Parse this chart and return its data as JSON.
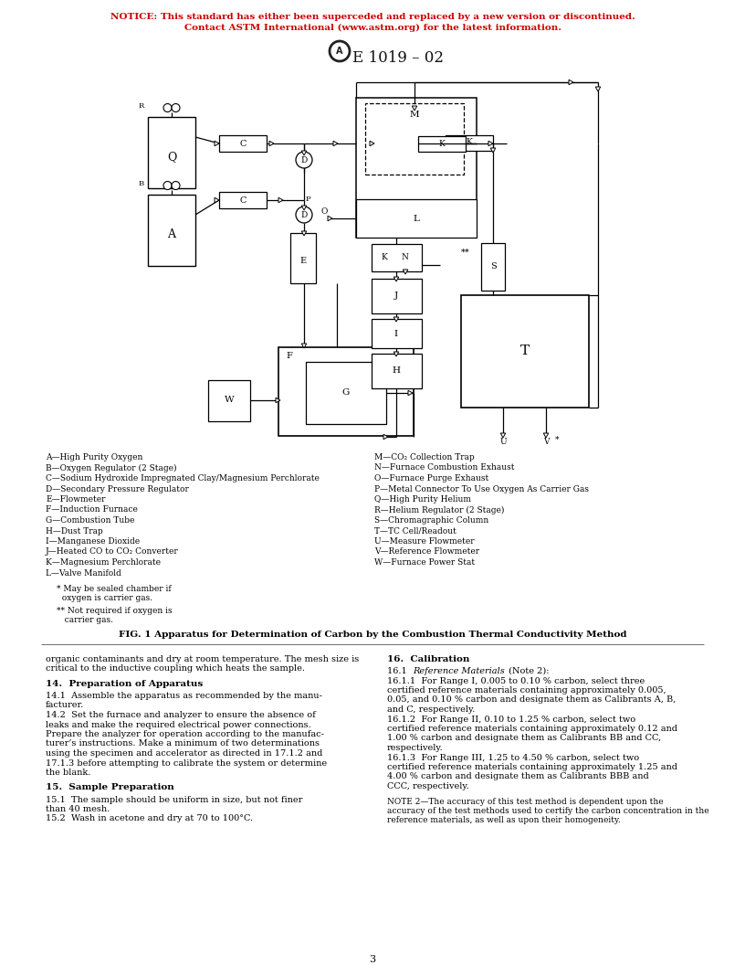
{
  "notice_line1": "NOTICE: This standard has either been superceded and replaced by a new version or discontinued.",
  "notice_line2": "Contact ASTM International (www.astm.org) for the latest information.",
  "notice_color": "#cc0000",
  "standard_title": "E 1019 – 02",
  "fig_caption": "FIG. 1 Apparatus for Determination of Carbon by the Combustion Thermal Conductivity Method",
  "legend_left": [
    "A—High Purity Oxygen",
    "B—Oxygen Regulator (2 Stage)",
    "C—Sodium Hydroxide Impregnated Clay/Magnesium Perchlorate",
    "D—Secondary Pressure Regulator",
    "E—Flowmeter",
    "F—Induction Furnace",
    "G—Combustion Tube",
    "H—Dust Trap",
    "I—Manganese Dioxide",
    "J—Heated CO to CO₂ Converter",
    "K—Magnesium Perchlorate",
    "L—Valve Manifold"
  ],
  "legend_right": [
    "M—CO₂ Collection Trap",
    "N—Furnace Combustion Exhaust",
    "O—Furnace Purge Exhaust",
    "P—Metal Connector To Use Oxygen As Carrier Gas",
    "Q—High Purity Helium",
    "R—Helium Regulator (2 Stage)",
    "S—Chromagraphic Column",
    "T—TC Cell/Readout",
    "U—Measure Flowmeter",
    "V—Reference Flowmeter",
    "W—Furnace Power Stat"
  ],
  "section14_title": "14.  Preparation of Apparatus",
  "section15_title": "15.  Sample Preparation",
  "section16_title": "16.  Calibration",
  "page_number": "3",
  "bg_color": "#ffffff",
  "text_color": "#000000"
}
